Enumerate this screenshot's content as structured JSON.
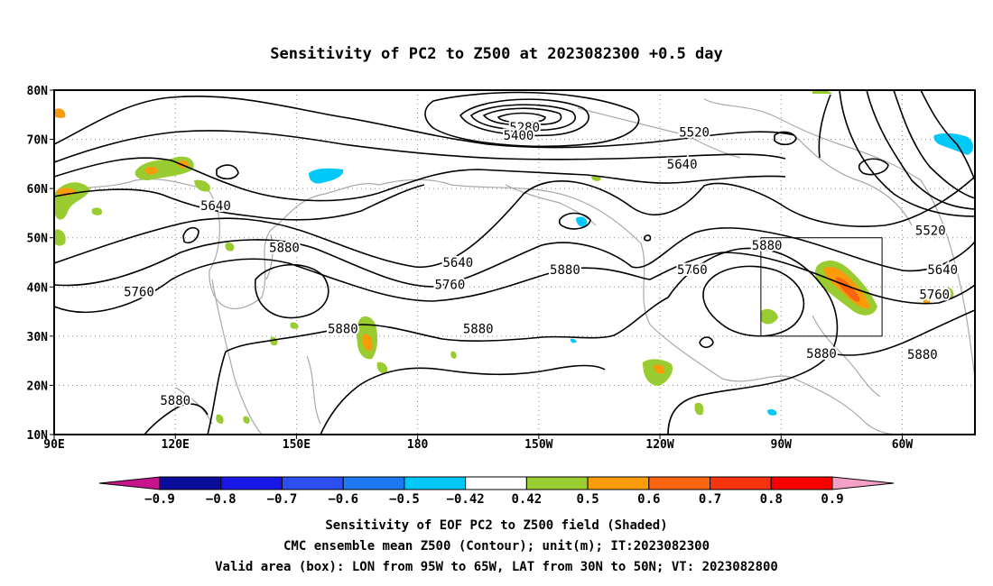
{
  "title": "Sensitivity of PC2 to Z500 at 2023082300 +0.5 day",
  "map": {
    "lat_labels": [
      "80N",
      "70N",
      "60N",
      "50N",
      "40N",
      "30N",
      "20N",
      "10N"
    ],
    "lon_labels": [
      "90E",
      "120E",
      "150E",
      "180",
      "150W",
      "120W",
      "90W",
      "60W"
    ],
    "extent": {
      "lon_min_east": 90,
      "lon_max_east": 318,
      "lat_min": 10,
      "lat_max": 80
    },
    "valid_box": {
      "lon": [
        "95W",
        "65W"
      ],
      "lat": [
        "30N",
        "50N"
      ]
    }
  },
  "contour_labels": [
    {
      "text": "5280",
      "lon": 206.5,
      "lat": 72.5
    },
    {
      "text": "5400",
      "lon": 205,
      "lat": 70.8
    },
    {
      "text": "5520",
      "lon": 248.5,
      "lat": 71.5
    },
    {
      "text": "5640",
      "lon": 245.5,
      "lat": 65
    },
    {
      "text": "5640",
      "lon": 130,
      "lat": 56.5
    },
    {
      "text": "5880",
      "lon": 147,
      "lat": 48
    },
    {
      "text": "5640",
      "lon": 190,
      "lat": 45
    },
    {
      "text": "5880",
      "lon": 216.5,
      "lat": 43.5
    },
    {
      "text": "5760",
      "lon": 248,
      "lat": 43.5
    },
    {
      "text": "5880",
      "lon": 266.5,
      "lat": 48.5
    },
    {
      "text": "5520",
      "lon": 307,
      "lat": 51.5
    },
    {
      "text": "5640",
      "lon": 310,
      "lat": 43.5
    },
    {
      "text": "5760",
      "lon": 111,
      "lat": 39
    },
    {
      "text": "5760",
      "lon": 188,
      "lat": 40.5
    },
    {
      "text": "5760",
      "lon": 308,
      "lat": 38.5
    },
    {
      "text": "5880",
      "lon": 161.5,
      "lat": 31.5
    },
    {
      "text": "5880",
      "lon": 195,
      "lat": 31.5
    },
    {
      "text": "5880",
      "lon": 280,
      "lat": 26.5
    },
    {
      "text": "5880",
      "lon": 305,
      "lat": 26.3
    },
    {
      "text": "5880",
      "lon": 120,
      "lat": 17
    }
  ],
  "colorbar": {
    "labels": [
      "−0.9",
      "−0.8",
      "−0.7",
      "−0.6",
      "−0.5",
      "−0.42",
      "0.42",
      "0.5",
      "0.6",
      "0.7",
      "0.8",
      "0.9"
    ],
    "colors": [
      "#0c0c9c",
      "#1818e6",
      "#2c50f0",
      "#1e78f0",
      "#00c8f8",
      "#ffffff",
      "#98cc30",
      "#fa9c0a",
      "#f86410",
      "#f83410",
      "#f80000"
    ],
    "low_end_color": "#c8148c",
    "high_end_color": "#f4a0c8"
  },
  "captions": [
    "Sensitivity of EOF PC2 to Z500 field (Shaded)",
    "CMC ensemble mean Z500 (Contour); unit(m); IT:2023082300",
    "Valid area (box): LON from 95W to 65W, LAT from 30N to 50N; VT: 2023082800"
  ]
}
